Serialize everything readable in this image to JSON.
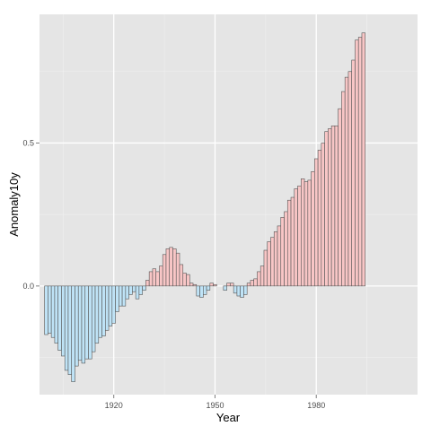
{
  "chart_data": {
    "type": "bar",
    "xlabel": "Year",
    "ylabel": "Anomaly10y",
    "x_ticks": [
      1920,
      1950,
      1980
    ],
    "y_ticks": [
      0.0,
      0.5
    ],
    "y_tick_labels": [
      "0.0",
      "0.5"
    ],
    "xlim": [
      1898,
      2010
    ],
    "ylim": [
      -0.38,
      0.95
    ],
    "grid": true,
    "legend": "none",
    "colors": {
      "positive_fill": "#f8c6c6",
      "negative_fill": "#bfe3f6",
      "bar_outline": "#555555",
      "panel_background": "#e5e5e5",
      "grid_major": "#ffffff",
      "grid_minor": "#f0f0f0"
    },
    "series": [
      {
        "x_start": 1900,
        "values": [
          -0.17,
          -0.165,
          -0.18,
          -0.2,
          -0.225,
          -0.245,
          -0.295,
          -0.31,
          -0.335,
          -0.28,
          -0.26,
          -0.27,
          -0.255,
          -0.255,
          -0.23,
          -0.2,
          -0.18,
          -0.175,
          -0.155,
          -0.14,
          -0.13,
          -0.09,
          -0.07,
          -0.07,
          -0.045,
          -0.03,
          -0.02,
          -0.045,
          -0.03,
          -0.015,
          0.02,
          0.05,
          0.06,
          0.05,
          0.07,
          0.11,
          0.13,
          0.135,
          0.13,
          0.115,
          0.075,
          0.045,
          0.04,
          0.01,
          0.005,
          -0.035,
          -0.04,
          -0.03,
          -0.015,
          0.01,
          0.005,
          0.0,
          0.0,
          -0.015,
          0.01,
          0.01,
          -0.025,
          -0.035,
          -0.04,
          -0.03,
          0.01,
          0.02,
          0.025,
          0.05,
          0.07,
          0.125,
          0.155,
          0.17,
          0.19,
          0.21,
          0.24,
          0.26,
          0.3,
          0.31,
          0.34,
          0.35,
          0.375,
          0.365,
          0.37,
          0.4,
          0.445,
          0.475,
          0.5,
          0.54,
          0.55,
          0.56,
          0.56,
          0.62,
          0.68,
          0.73,
          0.75,
          0.79,
          0.86,
          0.87,
          0.885
        ]
      }
    ]
  }
}
